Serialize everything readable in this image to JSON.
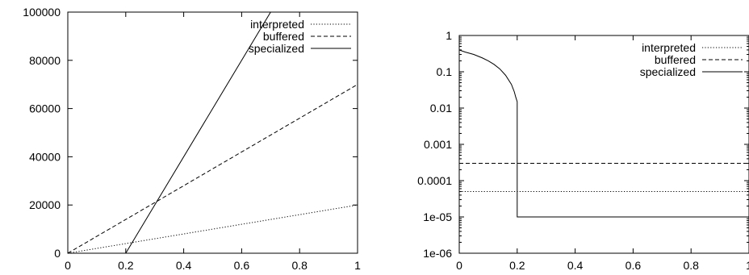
{
  "chart_data": [
    {
      "type": "line",
      "title": "",
      "xlabel": "",
      "ylabel": "",
      "xlim": [
        0,
        1
      ],
      "ylim": [
        0,
        100000
      ],
      "yscale": "linear",
      "grid": false,
      "legend_position": "top-right",
      "x_ticks": [
        "0",
        "0.2",
        "0.4",
        "0.6",
        "0.8",
        "1"
      ],
      "y_ticks": [
        "0",
        "20000",
        "40000",
        "60000",
        "80000",
        "100000"
      ],
      "series": [
        {
          "name": "interpreted",
          "style": "dotted",
          "x": [
            0,
            1
          ],
          "y": [
            0,
            20000
          ]
        },
        {
          "name": "buffered",
          "style": "dashed",
          "x": [
            0,
            1
          ],
          "y": [
            0,
            70000
          ]
        },
        {
          "name": "specialized",
          "style": "solid",
          "x": [
            0,
            0.2,
            0.7
          ],
          "y": [
            0,
            0,
            100000
          ]
        }
      ]
    },
    {
      "type": "line",
      "title": "",
      "xlabel": "",
      "ylabel": "",
      "xlim": [
        0,
        1
      ],
      "ylim": [
        1e-06,
        1
      ],
      "yscale": "log",
      "grid": false,
      "legend_position": "top-right",
      "x_ticks": [
        "0",
        "0.2",
        "0.4",
        "0.6",
        "0.8",
        "1"
      ],
      "y_ticks": [
        "1e-06",
        "1e-05",
        "0.0001",
        "0.001",
        "0.01",
        "0.1",
        "1"
      ],
      "series": [
        {
          "name": "interpreted",
          "style": "dotted",
          "x": [
            0,
            1
          ],
          "y": [
            5e-05,
            5e-05
          ]
        },
        {
          "name": "buffered",
          "style": "dashed",
          "x": [
            0,
            1
          ],
          "y": [
            0.0003,
            0.0003
          ]
        },
        {
          "name": "specialized",
          "style": "solid",
          "x": [
            0,
            0.02,
            0.05,
            0.08,
            0.1,
            0.12,
            0.14,
            0.16,
            0.18,
            0.19,
            0.195,
            0.2,
            0.2,
            1
          ],
          "y": [
            0.4,
            0.35,
            0.3,
            0.24,
            0.2,
            0.16,
            0.12,
            0.08,
            0.045,
            0.028,
            0.02,
            0.015,
            1e-05,
            1e-05
          ]
        }
      ]
    }
  ]
}
